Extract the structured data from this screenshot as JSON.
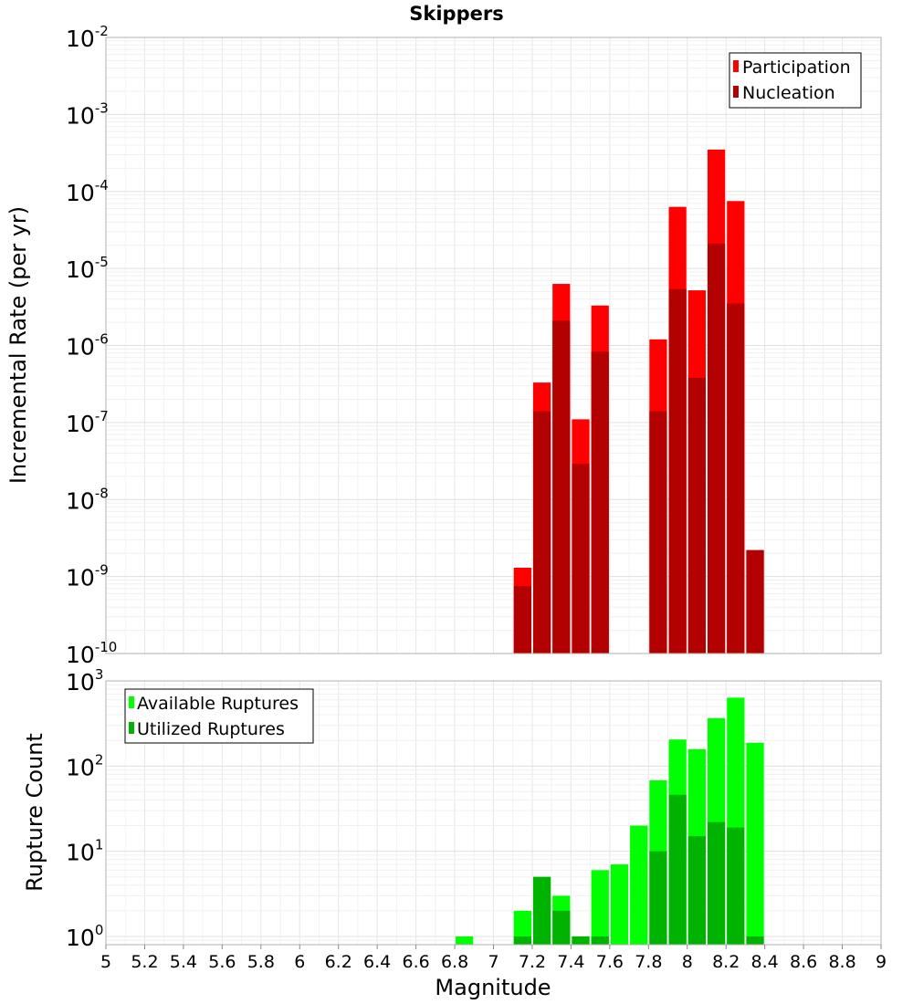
{
  "chart_data": [
    {
      "type": "bar",
      "title": "Skippers",
      "ylabel": "Incremental Rate (per yr)",
      "xlabel": "",
      "yscale": "log",
      "ylim": [
        1e-10,
        0.01
      ],
      "xlim": [
        5,
        9
      ],
      "y_tick_exponents": [
        "-10",
        "-9",
        "-8",
        "-7",
        "-6",
        "-5",
        "-4",
        "-3",
        "-2"
      ],
      "grid": true,
      "legend_position": "top-right",
      "bar_width": 0.1,
      "series": [
        {
          "name": "Participation",
          "color": "#ff0000",
          "x": [
            7.15,
            7.25,
            7.35,
            7.45,
            7.55,
            7.85,
            7.95,
            8.05,
            8.15,
            8.25,
            8.35
          ],
          "values": [
            1.3e-09,
            3.3e-07,
            6.3e-06,
            1.1e-07,
            3.3e-06,
            1.2e-06,
            6.3e-05,
            5.2e-06,
            0.00035,
            7.5e-05,
            2.2e-09
          ]
        },
        {
          "name": "Nucleation",
          "color": "#b30000",
          "x": [
            7.15,
            7.25,
            7.35,
            7.45,
            7.55,
            7.85,
            7.95,
            8.05,
            8.15,
            8.25,
            8.35
          ],
          "values": [
            7.5e-10,
            1.4e-07,
            2.1e-06,
            2.9e-08,
            8.3e-07,
            1.4e-07,
            5.4e-06,
            3.8e-07,
            2.1e-05,
            3.5e-06,
            2.2e-09
          ]
        }
      ]
    },
    {
      "type": "bar",
      "title": "",
      "ylabel": "Rupture Count",
      "xlabel": "Magnitude",
      "yscale": "log",
      "ylim": [
        0.8,
        1000
      ],
      "xlim": [
        5,
        9
      ],
      "y_tick_exponents": [
        "0",
        "1",
        "2",
        "3"
      ],
      "x_ticks": [
        "5",
        "5.2",
        "5.4",
        "5.6",
        "5.8",
        "6",
        "6.2",
        "6.4",
        "6.6",
        "6.8",
        "7",
        "7.2",
        "7.4",
        "7.6",
        "7.8",
        "8",
        "8.2",
        "8.4",
        "8.6",
        "8.8",
        "9"
      ],
      "grid": true,
      "legend_position": "top-left",
      "bar_width": 0.1,
      "series": [
        {
          "name": "Available Ruptures",
          "color": "#00ff00",
          "x": [
            6.85,
            7.15,
            7.25,
            7.35,
            7.45,
            7.55,
            7.65,
            7.75,
            7.85,
            7.95,
            8.05,
            8.15,
            8.25,
            8.35
          ],
          "values": [
            1,
            2,
            5,
            3,
            1,
            6,
            7,
            20,
            68,
            205,
            158,
            365,
            635,
            188
          ]
        },
        {
          "name": "Utilized Ruptures",
          "color": "#00b300",
          "x": [
            7.15,
            7.25,
            7.35,
            7.45,
            7.55,
            7.85,
            7.95,
            8.05,
            8.15,
            8.25,
            8.35
          ],
          "values": [
            1,
            5,
            2,
            1,
            1,
            10,
            46,
            15,
            22,
            19,
            1
          ]
        }
      ]
    }
  ]
}
